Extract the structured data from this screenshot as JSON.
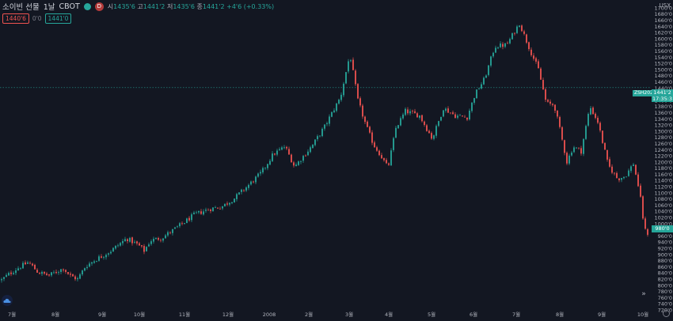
{
  "header": {
    "symbol": "소이빈 선물",
    "interval": "1날",
    "exchange": "CBOT",
    "badge_letter": "D",
    "ohlc": {
      "open_label": "시",
      "open": "1435'6",
      "high_label": "고",
      "high": "1441'2",
      "low_label": "저",
      "low": "1435'6",
      "close_label": "종",
      "close": "1441'2",
      "change": "+4'6 (+0.33%)"
    }
  },
  "price_badges": {
    "sell": "1440'6",
    "spread": "0'0",
    "buy": "1441'0"
  },
  "axis": {
    "currency": "USX",
    "price_label": "1441'2",
    "countdown": "17:35:3",
    "contract": "ZSH2021",
    "last_price_label": "980'0",
    "y_ticks": [
      "1700'0",
      "1680'0",
      "1660'0",
      "1640'0",
      "1620'0",
      "1600'0",
      "1580'0",
      "1560'0",
      "1540'0",
      "1520'0",
      "1500'0",
      "1480'0",
      "1460'0",
      "1440'0",
      "1420'0",
      "1400'0",
      "1380'0",
      "1360'0",
      "1340'0",
      "1320'0",
      "1300'0",
      "1280'0",
      "1260'0",
      "1240'0",
      "1220'0",
      "1200'0",
      "1180'0",
      "1160'0",
      "1140'0",
      "1120'0",
      "1100'0",
      "1080'0",
      "1060'0",
      "1040'0",
      "1020'0",
      "1000'0",
      "980'0",
      "960'0",
      "940'0",
      "920'0",
      "900'0",
      "880'0",
      "860'0",
      "840'0",
      "820'0",
      "800'0",
      "780'0",
      "760'0",
      "740'0",
      "720'0"
    ],
    "x_ticks": [
      "7월",
      "8월",
      "9월",
      "10월",
      "11월",
      "12월",
      "2008",
      "2월",
      "3월",
      "4월",
      "5월",
      "6월",
      "7월",
      "8월",
      "9월",
      "10월"
    ]
  },
  "chart_data": {
    "type": "candlestick",
    "y_range": [
      720,
      1710
    ],
    "keypoints_x": [
      0,
      8,
      20,
      36,
      48,
      62,
      80,
      88,
      98,
      108,
      122,
      140,
      160,
      175,
      182,
      190,
      205,
      225,
      246,
      265,
      280,
      295,
      312,
      330,
      345,
      360,
      372,
      395,
      410,
      430,
      442,
      452,
      462,
      472,
      480,
      490,
      500,
      512,
      530,
      546,
      560,
      575,
      590,
      600,
      612,
      625,
      640,
      656,
      670,
      680,
      690,
      700,
      708,
      716,
      724,
      734,
      745,
      755,
      768,
      780,
      790,
      800,
      808,
      814,
      822
    ],
    "keypoints_close": [
      813,
      830,
      852,
      875,
      842,
      832,
      855,
      832,
      820,
      862,
      885,
      912,
      952,
      930,
      912,
      945,
      955,
      990,
      1030,
      1048,
      1055,
      1080,
      1120,
      1165,
      1225,
      1250,
      1185,
      1255,
      1315,
      1410,
      1550,
      1400,
      1320,
      1255,
      1225,
      1180,
      1310,
      1365,
      1350,
      1275,
      1375,
      1350,
      1345,
      1420,
      1470,
      1575,
      1580,
      1650,
      1560,
      1500,
      1390,
      1385,
      1295,
      1200,
      1250,
      1235,
      1380,
      1330,
      1190,
      1145,
      1155,
      1195,
      1100,
      980,
      958
    ]
  }
}
